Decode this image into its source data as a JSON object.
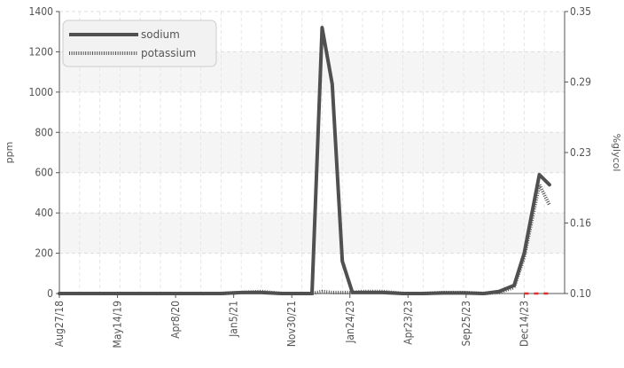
{
  "chart_data": {
    "type": "line",
    "title": "",
    "ylabel": "ppm",
    "y2label": "%glycol",
    "ylim": [
      0,
      1400
    ],
    "y2lim": [
      0.1,
      0.35
    ],
    "yticks": [
      "0",
      "200",
      "400",
      "600",
      "800",
      "1000",
      "1200",
      "1400"
    ],
    "y2ticks": [
      "0.10",
      "0.16",
      "0.23",
      "0.29",
      "0.35"
    ],
    "xticks": [
      "Aug27/18",
      "May14/19",
      "Apr8/20",
      "Jan5/21",
      "Nov30/21",
      "Jan24/23",
      "Apr23/23",
      "Sep25/23",
      "Dec14/23"
    ],
    "grid": true,
    "legend_position": "top-left",
    "x_range": [
      0,
      100
    ],
    "series": [
      {
        "name": "sodium",
        "style": "solid",
        "color": "#505050",
        "x": [
          0,
          4,
          8,
          12,
          16,
          20,
          24,
          28,
          32,
          36,
          40,
          44,
          47,
          50,
          52,
          54,
          56,
          58,
          60,
          64,
          68,
          72,
          76,
          80,
          84,
          87,
          90,
          92,
          95,
          97
        ],
        "values": [
          0,
          0,
          0,
          0,
          0,
          0,
          0,
          0,
          0,
          5,
          5,
          0,
          0,
          0,
          1320,
          1040,
          160,
          5,
          5,
          5,
          0,
          0,
          3,
          3,
          0,
          10,
          40,
          200,
          590,
          540
        ]
      },
      {
        "name": "potassium",
        "style": "dotted",
        "color": "#505050",
        "x": [
          0,
          4,
          8,
          12,
          16,
          20,
          24,
          28,
          32,
          36,
          40,
          44,
          47,
          50,
          52,
          54,
          56,
          58,
          60,
          64,
          68,
          72,
          76,
          80,
          84,
          87,
          90,
          92,
          95,
          97
        ],
        "values": [
          0,
          0,
          0,
          0,
          0,
          0,
          0,
          0,
          0,
          5,
          10,
          0,
          0,
          0,
          10,
          5,
          5,
          5,
          10,
          10,
          0,
          0,
          5,
          5,
          0,
          5,
          30,
          180,
          540,
          440
        ]
      },
      {
        "name": "",
        "style": "dashed",
        "color": "#e03030",
        "axis": "right",
        "x": [
          92,
          97
        ],
        "values": [
          0.1,
          0.1
        ]
      }
    ]
  }
}
